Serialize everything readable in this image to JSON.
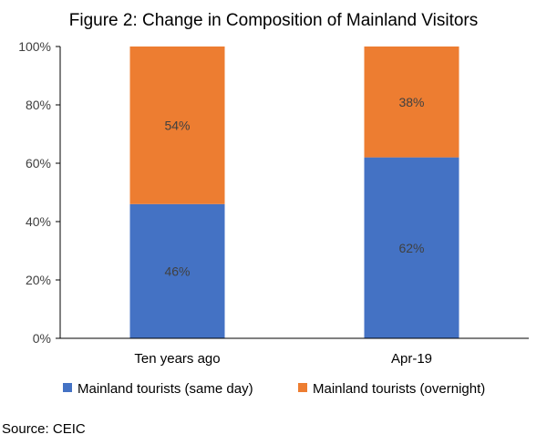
{
  "chart_data": {
    "type": "bar",
    "stacked": true,
    "title": "Figure 2: Change in Composition of Mainland Visitors",
    "categories": [
      "Ten years ago",
      "Apr-19"
    ],
    "series": [
      {
        "name": "Mainland tourists (same day)",
        "values": [
          46,
          62
        ],
        "labels": [
          "46%",
          "62%"
        ],
        "color": "#4472C4"
      },
      {
        "name": "Mainland tourists (overnight)",
        "values": [
          54,
          38
        ],
        "labels": [
          "54%",
          "38%"
        ],
        "color": "#ED7D31"
      }
    ],
    "ylim": [
      0,
      100
    ],
    "yticks": [
      0,
      20,
      40,
      60,
      80,
      100
    ],
    "ytick_labels": [
      "0%",
      "20%",
      "40%",
      "60%",
      "80%",
      "100%"
    ],
    "legend_position": "bottom",
    "grid": false
  },
  "source": "Source: CEIC"
}
